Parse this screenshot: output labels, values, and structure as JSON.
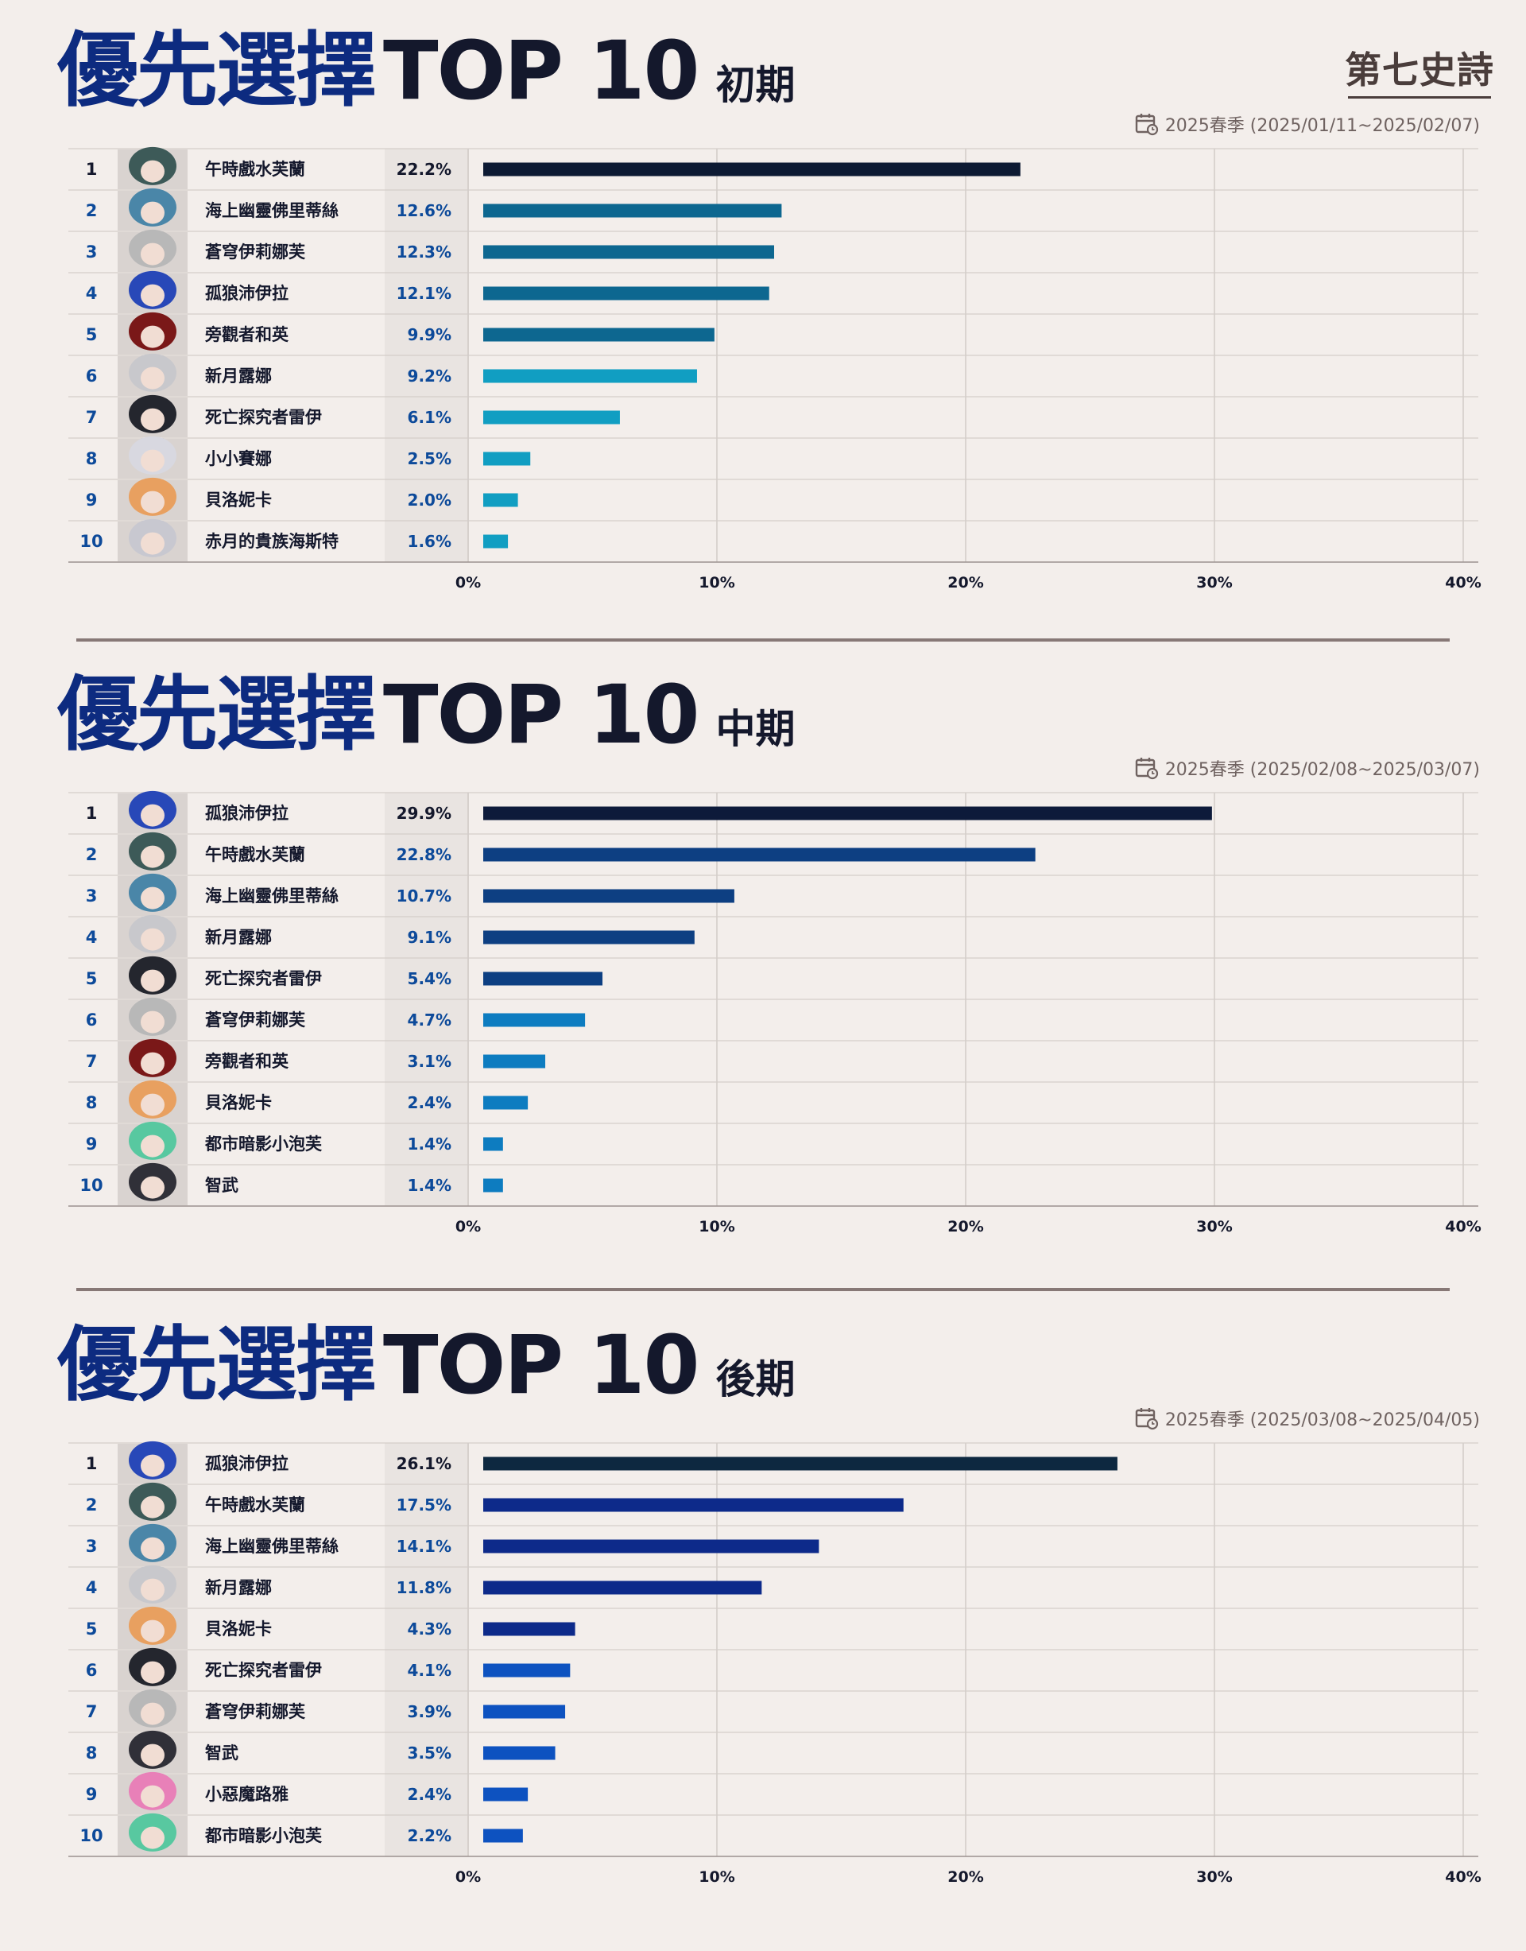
{
  "logo": "第七史詩",
  "sections": [
    {
      "title_highlight": "優先選擇",
      "title_main": "TOP 10",
      "phase": "初期",
      "date": "2025春季 (2025/01/11~2025/02/07)",
      "chart_data": {
        "type": "bar",
        "orientation": "horizontal",
        "xlim": [
          0,
          40
        ],
        "xticks": [
          "0%",
          "10%",
          "20%",
          "30%",
          "40%"
        ],
        "ranks": [
          "1",
          "2",
          "3",
          "4",
          "5",
          "6",
          "7",
          "8",
          "9",
          "10"
        ],
        "categories": [
          "午時戲水芙蘭",
          "海上幽靈佛里蒂絲",
          "蒼穹伊莉娜芙",
          "孤狼沛伊拉",
          "旁觀者和英",
          "新月露娜",
          "死亡探究者雷伊",
          "小小賽娜",
          "貝洛妮卡",
          "赤月的貴族海斯特"
        ],
        "values": [
          22.2,
          12.6,
          12.3,
          12.1,
          9.9,
          9.2,
          6.1,
          2.5,
          2.0,
          1.6
        ],
        "labels": [
          "22.2%",
          "12.6%",
          "12.3%",
          "12.1%",
          "9.9%",
          "9.2%",
          "6.1%",
          "2.5%",
          "2.0%",
          "1.6%"
        ],
        "bar_colors": [
          "#0d1a33",
          "#0d6790",
          "#0d6790",
          "#0d6790",
          "#0d6790",
          "#119ec2",
          "#119ec2",
          "#119ec2",
          "#119ec2",
          "#119ec2"
        ],
        "rank_colors": [
          "#14182c",
          "#0d4a9a",
          "#0d4a9a",
          "#0d4a9a",
          "#0d4a9a",
          "#0d4a9a",
          "#0d4a9a",
          "#0d4a9a",
          "#0d4a9a",
          "#0d4a9a"
        ],
        "portrait_colors": [
          "#3d5a58",
          "#4a86a8",
          "#b8b8b8",
          "#2848b8",
          "#7a1818",
          "#c8c8cc",
          "#24262e",
          "#d8d8e0",
          "#e8a060",
          "#c8c8d0"
        ]
      }
    },
    {
      "title_highlight": "優先選擇",
      "title_main": "TOP 10",
      "phase": "中期",
      "date": "2025春季 (2025/02/08~2025/03/07)",
      "chart_data": {
        "type": "bar",
        "orientation": "horizontal",
        "xlim": [
          0,
          40
        ],
        "xticks": [
          "0%",
          "10%",
          "20%",
          "30%",
          "40%"
        ],
        "ranks": [
          "1",
          "2",
          "3",
          "4",
          "5",
          "6",
          "7",
          "8",
          "9",
          "10"
        ],
        "categories": [
          "孤狼沛伊拉",
          "午時戲水芙蘭",
          "海上幽靈佛里蒂絲",
          "新月露娜",
          "死亡探究者雷伊",
          "蒼穹伊莉娜芙",
          "旁觀者和英",
          "貝洛妮卡",
          "都市暗影小泡芙",
          "智武"
        ],
        "values": [
          29.9,
          22.8,
          10.7,
          9.1,
          5.4,
          4.7,
          3.1,
          2.4,
          1.4,
          1.4
        ],
        "labels": [
          "29.9%",
          "22.8%",
          "10.7%",
          "9.1%",
          "5.4%",
          "4.7%",
          "3.1%",
          "2.4%",
          "1.4%",
          "1.4%"
        ],
        "bar_colors": [
          "#0d1a3a",
          "#0d3f82",
          "#0d3f82",
          "#0d3f82",
          "#0d3f82",
          "#0d7cc0",
          "#0d7cc0",
          "#0d7cc0",
          "#0d7cc0",
          "#0d7cc0"
        ],
        "rank_colors": [
          "#14182c",
          "#0d4a9a",
          "#0d4a9a",
          "#0d4a9a",
          "#0d4a9a",
          "#0d4a9a",
          "#0d4a9a",
          "#0d4a9a",
          "#0d4a9a",
          "#0d4a9a"
        ],
        "portrait_colors": [
          "#2848b8",
          "#3d5a58",
          "#4a86a8",
          "#c8c8cc",
          "#24262e",
          "#b8b8b8",
          "#7a1818",
          "#e8a060",
          "#58c8a0",
          "#303038"
        ]
      }
    },
    {
      "title_highlight": "優先選擇",
      "title_main": "TOP 10",
      "phase": "後期",
      "date": "2025春季 (2025/03/08~2025/04/05)",
      "chart_data": {
        "type": "bar",
        "orientation": "horizontal",
        "xlim": [
          0,
          40
        ],
        "xticks": [
          "0%",
          "10%",
          "20%",
          "30%",
          "40%"
        ],
        "ranks": [
          "1",
          "2",
          "3",
          "4",
          "5",
          "6",
          "7",
          "8",
          "9",
          "10"
        ],
        "categories": [
          "孤狼沛伊拉",
          "午時戲水芙蘭",
          "海上幽靈佛里蒂絲",
          "新月露娜",
          "貝洛妮卡",
          "死亡探究者雷伊",
          "蒼穹伊莉娜芙",
          "智武",
          "小惡魔路雅",
          "都市暗影小泡芙"
        ],
        "values": [
          26.1,
          17.5,
          14.1,
          11.8,
          4.3,
          4.1,
          3.9,
          3.5,
          2.4,
          2.2
        ],
        "labels": [
          "26.1%",
          "17.5%",
          "14.1%",
          "11.8%",
          "4.3%",
          "4.1%",
          "3.9%",
          "3.5%",
          "2.4%",
          "2.2%"
        ],
        "bar_colors": [
          "#0d2840",
          "#0d2a8a",
          "#0d2a8a",
          "#0d2a8a",
          "#0d2a8a",
          "#0d52c0",
          "#0d52c0",
          "#0d52c0",
          "#0d52c0",
          "#0d52c0"
        ],
        "rank_colors": [
          "#14182c",
          "#0d4a9a",
          "#0d4a9a",
          "#0d4a9a",
          "#0d4a9a",
          "#0d4a9a",
          "#0d4a9a",
          "#0d4a9a",
          "#0d4a9a",
          "#0d4a9a"
        ],
        "portrait_colors": [
          "#2848b8",
          "#3d5a58",
          "#4a86a8",
          "#c8c8cc",
          "#e8a060",
          "#24262e",
          "#b8b8b8",
          "#303038",
          "#e880b8",
          "#58c8a0"
        ]
      }
    }
  ]
}
